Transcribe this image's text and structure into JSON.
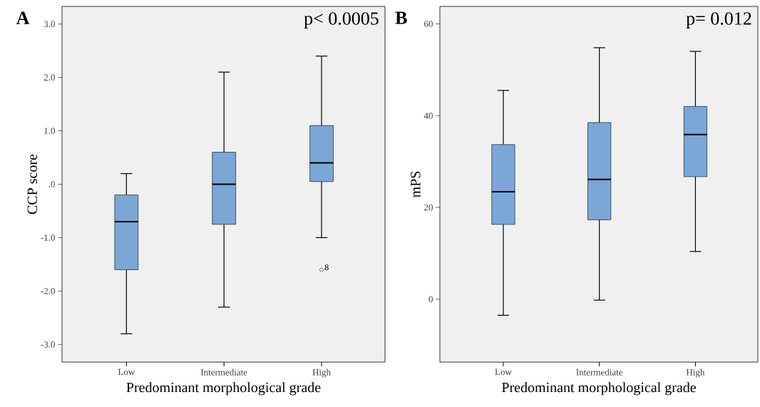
{
  "chart_data": [
    {
      "type": "box",
      "title": "A",
      "xlabel": "Predominant morphological grade",
      "ylabel": "CCP score",
      "categories": [
        "Low",
        "Intermediate",
        "High"
      ],
      "color": "#7ba7d7",
      "boxes": [
        {
          "low": -2.8,
          "q1": -1.6,
          "median": -0.7,
          "q3": -0.2,
          "high": 0.2
        },
        {
          "low": -2.3,
          "q1": -0.75,
          "median": 0.0,
          "q3": 0.6,
          "high": 2.1
        },
        {
          "low": -1.0,
          "q1": 0.05,
          "median": 0.4,
          "q3": 1.1,
          "high": 2.4,
          "outliers": [
            -1.6
          ]
        }
      ],
      "ylim": [
        -3.33,
        3.33
      ],
      "yticks": [
        {
          "value": -3,
          "label": "-3.0"
        },
        {
          "value": -2,
          "label": "-2.0"
        },
        {
          "value": -1,
          "label": "-1.0"
        },
        {
          "value": 0,
          "label": ".0"
        },
        {
          "value": 1,
          "label": "1.0"
        },
        {
          "value": 2,
          "label": "2.0"
        },
        {
          "value": 3,
          "label": "3.0"
        }
      ],
      "grid": false,
      "annotations": [
        "p< 0.0005",
        "8"
      ]
    },
    {
      "type": "box",
      "title": "B",
      "xlabel": "Predominant morphological grade",
      "ylabel": "mPS",
      "categories": [
        "Low",
        "Intermediate",
        "High"
      ],
      "color": "#7ba7d7",
      "boxes": [
        {
          "low": -3.5,
          "q1": 16.3,
          "median": 23.4,
          "q3": 33.7,
          "high": 45.5
        },
        {
          "low": -0.2,
          "q1": 17.3,
          "median": 26.1,
          "q3": 38.5,
          "high": 54.8
        },
        {
          "low": 10.4,
          "q1": 26.7,
          "median": 35.9,
          "q3": 42.0,
          "high": 54.0
        }
      ],
      "ylim": [
        -13.7,
        63.8
      ],
      "yticks": [
        0,
        20,
        40,
        60
      ],
      "grid": false,
      "annotations": [
        "p= 0.012"
      ]
    }
  ]
}
